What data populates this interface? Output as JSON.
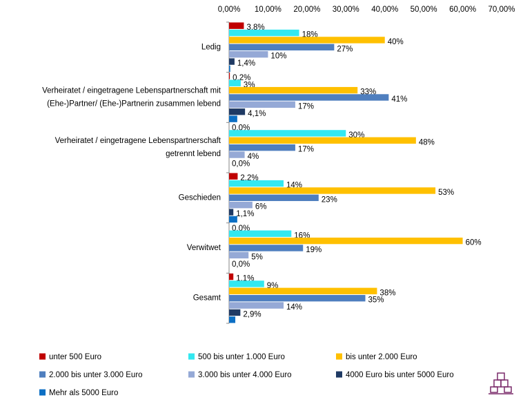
{
  "chart_data": {
    "type": "grouped-horizontal-bar",
    "categories": [
      [
        "Ledig"
      ],
      [
        "Verheiratet / eingetragene Lebenspartnerschaft mit",
        "(Ehe-)Partner/ (Ehe-)Partnerin zusammen lebend"
      ],
      [
        "Verheiratet / eingetragene Lebenspartnerschaft",
        "getrennt lebend"
      ],
      [
        "Geschieden"
      ],
      [
        "Verwitwet"
      ],
      [
        "Gesamt"
      ]
    ],
    "series": [
      {
        "name": "unter 500 Euro",
        "color": "#c00000",
        "values": [
          3.8,
          0.2,
          0,
          2.2,
          0,
          1.1
        ],
        "value_labels": [
          "3,8%",
          "0,2%",
          "0,0%",
          "2,2%",
          "0,0%",
          "1,1%"
        ]
      },
      {
        "name": "500 bis unter 1.000 Euro",
        "color": "#33e8f0",
        "values": [
          18,
          3,
          30,
          14,
          16,
          9
        ],
        "value_labels": [
          "18%",
          "3%",
          "30%",
          "14%",
          "16%",
          "9%"
        ]
      },
      {
        "name": "bis unter 2.000 Euro",
        "color": "#ffc000",
        "values": [
          40,
          33,
          48,
          53,
          60,
          38
        ],
        "value_labels": [
          "40%",
          "33%",
          "48%",
          "53%",
          "60%",
          "38%"
        ]
      },
      {
        "name": "2.000 bis unter 3.000 Euro",
        "color": "#4f7fbf",
        "values": [
          27,
          41,
          17,
          23,
          19,
          35
        ],
        "value_labels": [
          "27%",
          "41%",
          "17%",
          "23%",
          "19%",
          "35%"
        ]
      },
      {
        "name": "3.000 bis unter 4.000 Euro",
        "color": "#95a9d6",
        "values": [
          10,
          17,
          4,
          6,
          5,
          14
        ],
        "value_labels": [
          "10%",
          "17%",
          "4%",
          "6%",
          "5%",
          "14%"
        ]
      },
      {
        "name": "4000 Euro bis unter 5000 Euro",
        "color": "#1f3a64",
        "values": [
          1.4,
          4.1,
          0,
          1.1,
          0,
          2.9
        ],
        "value_labels": [
          "1,4%",
          "4,1%",
          "0,0%",
          "1,1%",
          "0,0%",
          "2,9%"
        ]
      },
      {
        "name": "Mehr als 5000 Euro",
        "color": "#0c6fc4",
        "values": [
          0.3,
          2.1,
          0,
          2.1,
          0,
          1.6
        ]
      }
    ],
    "xlim": [
      0,
      70
    ],
    "xticks": [
      {
        "value": 0,
        "label": "0,00%"
      },
      {
        "value": 10,
        "label": "10,00%"
      },
      {
        "value": 20,
        "label": "20,00%"
      },
      {
        "value": 30,
        "label": "30,00%"
      },
      {
        "value": 40,
        "label": "40,00%"
      },
      {
        "value": 50,
        "label": "50,00%"
      },
      {
        "value": 60,
        "label": "60,00%"
      },
      {
        "value": 70,
        "label": "70,00%"
      }
    ],
    "legend": "bottom"
  }
}
